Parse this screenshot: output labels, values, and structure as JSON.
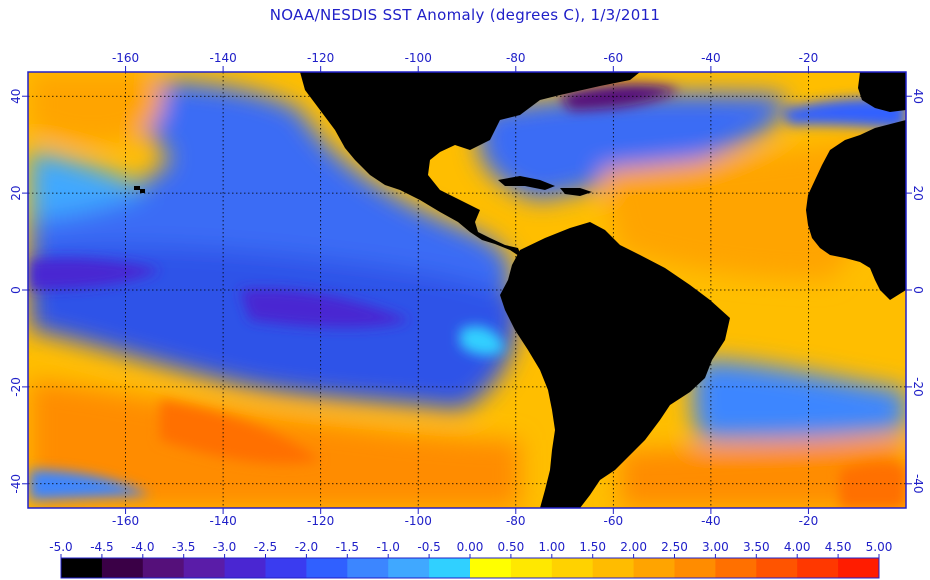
{
  "title": "NOAA/NESDIS SST Anomaly (degrees C), 1/3/2011",
  "map": {
    "lon_range": [
      -180,
      0
    ],
    "lat_range": [
      -45,
      45
    ],
    "lon_ticks": [
      -160,
      -140,
      -120,
      -100,
      -80,
      -60,
      -40,
      -20
    ],
    "lat_ticks": [
      -40,
      -20,
      0,
      20,
      40
    ],
    "grid": "dotted"
  },
  "colorbar": {
    "labels": [
      "-5.0",
      "-4.5",
      "-4.0",
      "-3.5",
      "-3.0",
      "-2.5",
      "-2.0",
      "-1.5",
      "-1.0",
      "-0.5",
      "0.00",
      "0.50",
      "1.00",
      "1.50",
      "2.00",
      "2.50",
      "3.00",
      "3.50",
      "4.00",
      "4.50",
      "5.00"
    ],
    "colors": [
      "#000000",
      "#3a0046",
      "#55107a",
      "#5a1ca8",
      "#4a26d2",
      "#3a3cf0",
      "#3060ff",
      "#3c86ff",
      "#40a8ff",
      "#30d0ff",
      "#ffff00",
      "#ffe800",
      "#ffd200",
      "#ffbc00",
      "#ffa400",
      "#ff8c00",
      "#ff7000",
      "#ff5400",
      "#ff3800",
      "#ff1c00"
    ]
  },
  "colors": {
    "land": "#000000",
    "text": "#2020c8",
    "frame": "#2020c8"
  }
}
